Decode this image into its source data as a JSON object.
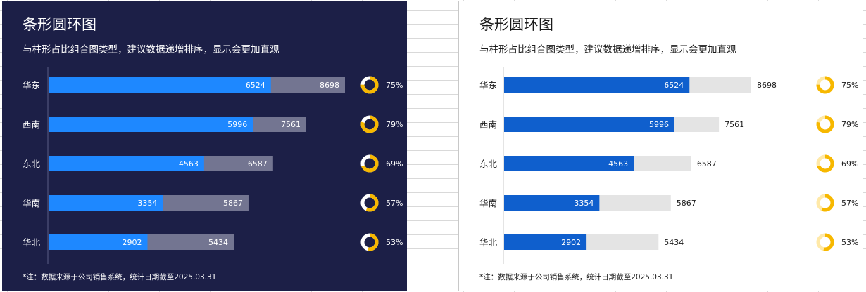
{
  "panels": [
    {
      "title": "条形圆环图",
      "subtitle": "与柱形占比组合图类型，建议数据递增排序，显示会更加直观",
      "footnote": "*注：数据来源于公司销售系统，统计日期截至2025.03.31"
    },
    {
      "title": "条形圆环图",
      "subtitle": "与柱形占比组合图类型，建议数据递增排序，显示会更加直观",
      "footnote": "*注：数据来源于公司销售系统，统计日期截至2025.03.31"
    }
  ],
  "colors": {
    "dark_background": "#1c1f47",
    "dark_actual_bar": "#1e88ff",
    "dark_target_bar": "#737591",
    "light_actual_bar": "#0f5fcd",
    "light_target_bar": "#e4e4e4",
    "ring": "#f7b800",
    "ring_track_dark": "#ffffff",
    "ring_track_light": "#ffe9a8"
  },
  "chart_data": [
    {
      "type": "bar",
      "orientation": "horizontal",
      "theme": "dark",
      "categories": [
        "华东",
        "西南",
        "东北",
        "华南",
        "华北"
      ],
      "series": [
        {
          "values": [
            6524,
            5996,
            4563,
            3354,
            2902
          ]
        },
        {
          "values": [
            8698,
            7561,
            6587,
            5867,
            5434
          ]
        }
      ],
      "percent_labels": [
        "75%",
        "79%",
        "69%",
        "57%",
        "53%"
      ],
      "percent_values": [
        75,
        79,
        69,
        57,
        53
      ],
      "value_labels_inside": true,
      "xlim": [
        0,
        8698
      ]
    },
    {
      "type": "bar",
      "orientation": "horizontal",
      "theme": "light",
      "categories": [
        "华东",
        "西南",
        "东北",
        "华南",
        "华北"
      ],
      "series": [
        {
          "values": [
            6524,
            5996,
            4563,
            3354,
            2902
          ]
        },
        {
          "values": [
            8698,
            7561,
            6587,
            5867,
            5434
          ]
        }
      ],
      "percent_labels": [
        "75%",
        "79%",
        "69%",
        "57%",
        "53%"
      ],
      "percent_values": [
        75,
        79,
        69,
        57,
        53
      ],
      "value_labels_inside": false,
      "xlim": [
        0,
        8698
      ]
    }
  ]
}
